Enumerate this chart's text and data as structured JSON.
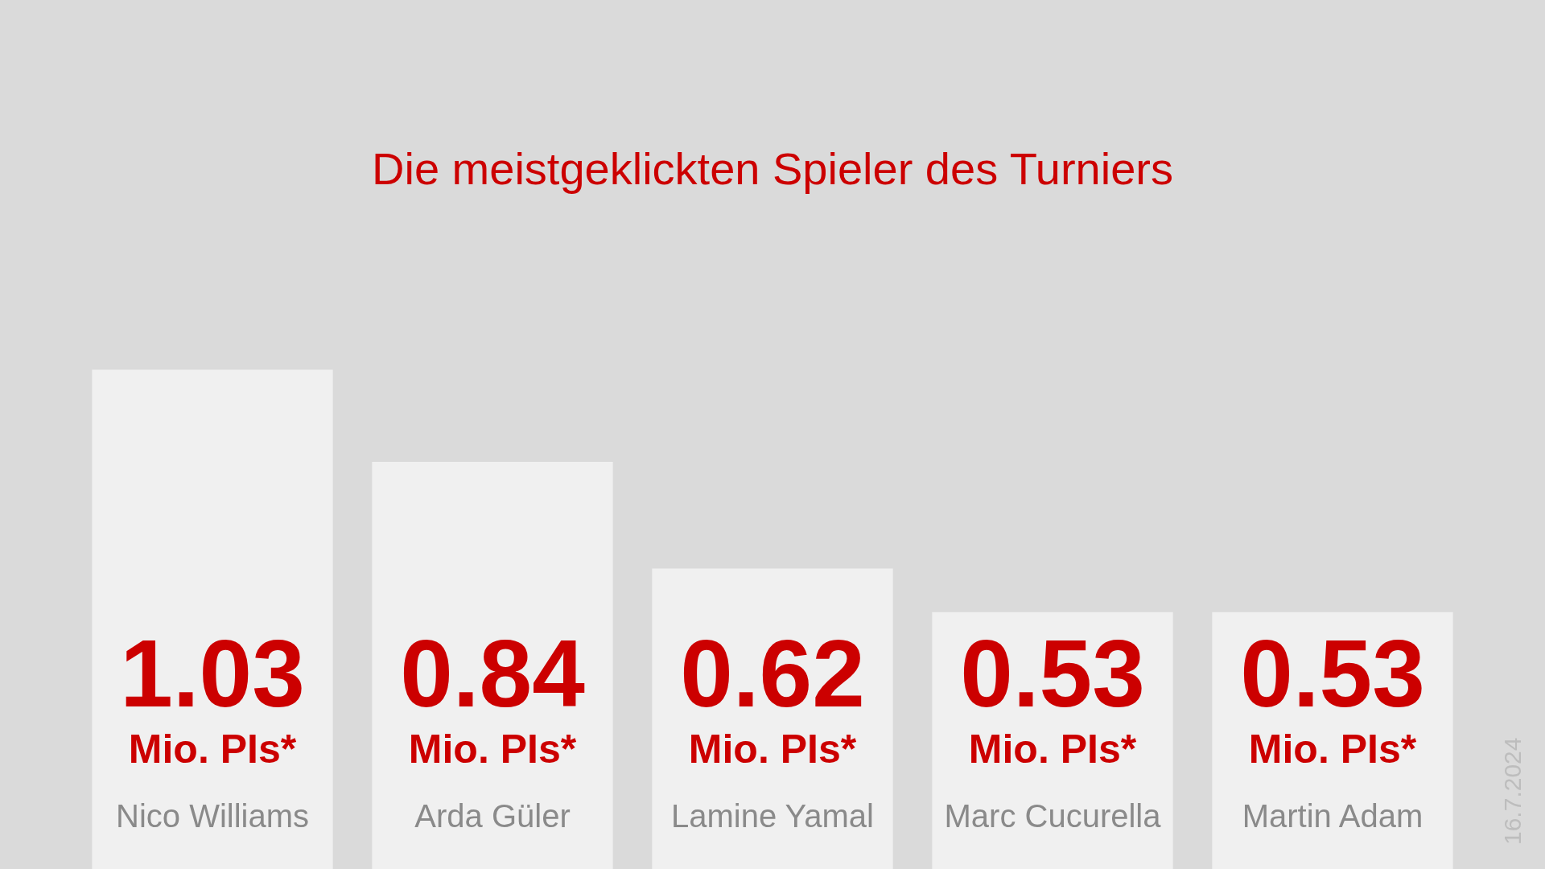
{
  "chart_data": {
    "type": "bar",
    "title": "Die meistgeklickten Spieler des Turniers",
    "categories": [
      "Nico Williams",
      "Arda Güler",
      "Lamine Yamal",
      "Marc Cucurella",
      "Martin Adam"
    ],
    "values": [
      1.03,
      0.84,
      0.62,
      0.53,
      0.53
    ],
    "value_labels": [
      "1.03 Mio. PIs*",
      "0.84 Mio. PIs*",
      "0.62 Mio. PIs*",
      "0.53 Mio. PIs*",
      "0.53 Mio. PIs*"
    ],
    "color": "#f0f0f0",
    "annotations": [
      "16.7.2024"
    ]
  }
}
